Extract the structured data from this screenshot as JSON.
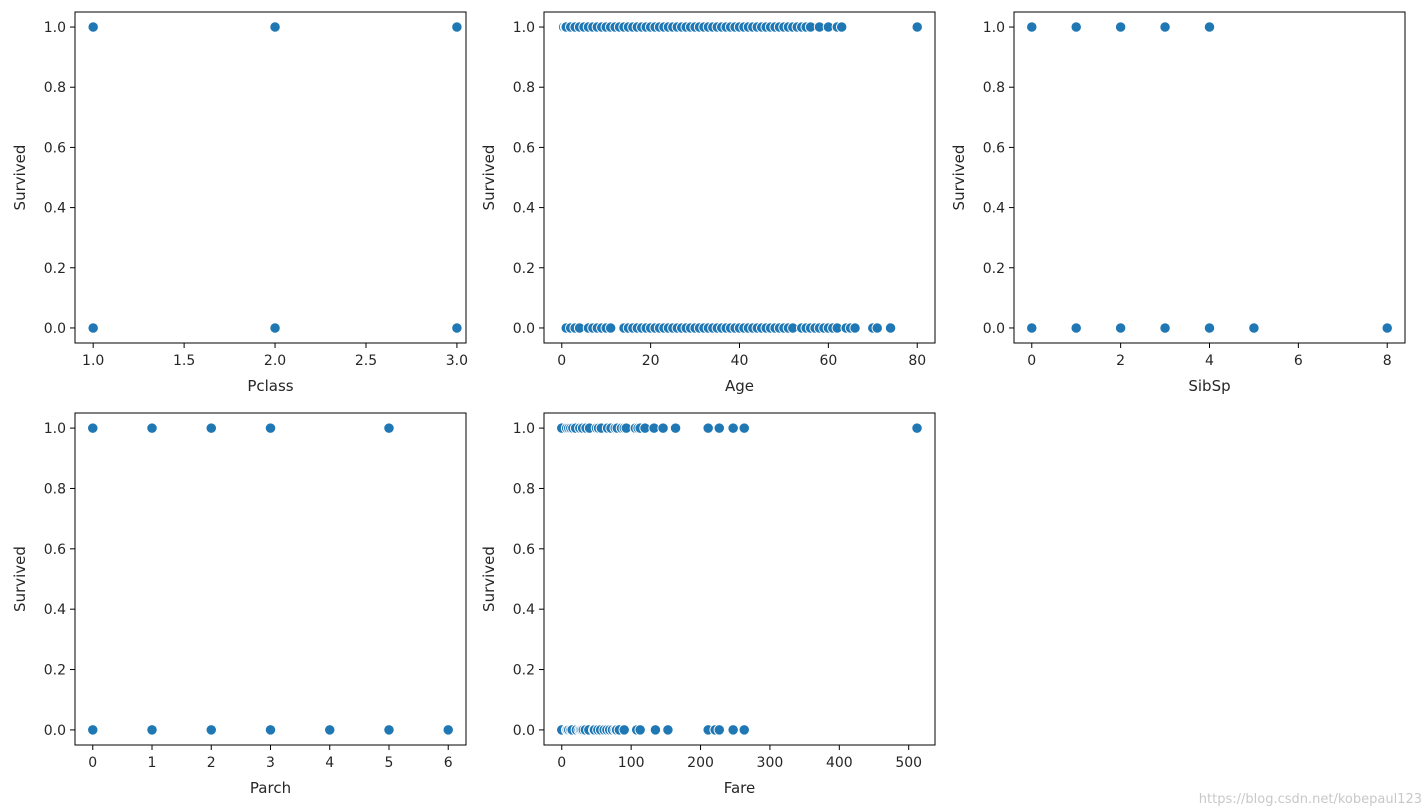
{
  "watermark": "https://blog.csdn.net/kobepaul123",
  "colors": {
    "marker": "#1f77b4",
    "marker_edge": "#ffffff",
    "axes": "#000000",
    "text": "#262626"
  },
  "chart_data": [
    {
      "type": "scatter",
      "xlabel": "Pclass",
      "ylabel": "Survived",
      "xlim": [
        0.9,
        3.05
      ],
      "ylim": [
        -0.05,
        1.05
      ],
      "xticks": [
        1.0,
        1.5,
        2.0,
        2.5,
        3.0
      ],
      "xtick_labels": [
        "1.0",
        "1.5",
        "2.0",
        "2.5",
        "3.0"
      ],
      "yticks": [
        0.0,
        0.2,
        0.4,
        0.6,
        0.8,
        1.0
      ],
      "ytick_labels": [
        "0.0",
        "0.2",
        "0.4",
        "0.6",
        "0.8",
        "1.0"
      ],
      "points": [
        [
          1,
          1
        ],
        [
          2,
          1
        ],
        [
          3,
          1
        ],
        [
          1,
          0
        ],
        [
          2,
          0
        ],
        [
          3,
          0
        ]
      ]
    },
    {
      "type": "scatter",
      "xlabel": "Age",
      "ylabel": "Survived",
      "xlim": [
        -4,
        84
      ],
      "ylim": [
        -0.05,
        1.05
      ],
      "xticks": [
        0,
        20,
        40,
        60,
        80
      ],
      "xtick_labels": [
        "0",
        "20",
        "40",
        "60",
        "80"
      ],
      "yticks": [
        0.0,
        0.2,
        0.4,
        0.6,
        0.8,
        1.0
      ],
      "ytick_labels": [
        "0.0",
        "0.2",
        "0.4",
        "0.6",
        "0.8",
        "1.0"
      ],
      "points": [
        [
          0.42,
          1
        ],
        [
          0.83,
          1
        ],
        [
          1,
          1
        ],
        [
          2,
          1
        ],
        [
          3,
          1
        ],
        [
          4,
          1
        ],
        [
          5,
          1
        ],
        [
          6,
          1
        ],
        [
          7,
          1
        ],
        [
          8,
          1
        ],
        [
          9,
          1
        ],
        [
          10,
          1
        ],
        [
          11,
          1
        ],
        [
          12,
          1
        ],
        [
          13,
          1
        ],
        [
          14,
          1
        ],
        [
          15,
          1
        ],
        [
          16,
          1
        ],
        [
          17,
          1
        ],
        [
          18,
          1
        ],
        [
          19,
          1
        ],
        [
          20,
          1
        ],
        [
          21,
          1
        ],
        [
          22,
          1
        ],
        [
          23,
          1
        ],
        [
          24,
          1
        ],
        [
          25,
          1
        ],
        [
          26,
          1
        ],
        [
          27,
          1
        ],
        [
          28,
          1
        ],
        [
          29,
          1
        ],
        [
          30,
          1
        ],
        [
          31,
          1
        ],
        [
          32,
          1
        ],
        [
          33,
          1
        ],
        [
          34,
          1
        ],
        [
          35,
          1
        ],
        [
          36,
          1
        ],
        [
          37,
          1
        ],
        [
          38,
          1
        ],
        [
          39,
          1
        ],
        [
          40,
          1
        ],
        [
          41,
          1
        ],
        [
          42,
          1
        ],
        [
          43,
          1
        ],
        [
          44,
          1
        ],
        [
          45,
          1
        ],
        [
          46,
          1
        ],
        [
          47,
          1
        ],
        [
          48,
          1
        ],
        [
          49,
          1
        ],
        [
          50,
          1
        ],
        [
          51,
          1
        ],
        [
          52,
          1
        ],
        [
          53,
          1
        ],
        [
          54,
          1
        ],
        [
          55,
          1
        ],
        [
          56,
          1
        ],
        [
          58,
          1
        ],
        [
          60,
          1
        ],
        [
          62,
          1
        ],
        [
          63,
          1
        ],
        [
          80,
          1
        ],
        [
          1,
          0
        ],
        [
          2,
          0
        ],
        [
          3,
          0
        ],
        [
          4,
          0
        ],
        [
          6,
          0
        ],
        [
          7,
          0
        ],
        [
          8,
          0
        ],
        [
          9,
          0
        ],
        [
          10,
          0
        ],
        [
          11,
          0
        ],
        [
          14,
          0
        ],
        [
          15,
          0
        ],
        [
          16,
          0
        ],
        [
          17,
          0
        ],
        [
          18,
          0
        ],
        [
          19,
          0
        ],
        [
          20,
          0
        ],
        [
          21,
          0
        ],
        [
          22,
          0
        ],
        [
          23,
          0
        ],
        [
          24,
          0
        ],
        [
          25,
          0
        ],
        [
          26,
          0
        ],
        [
          27,
          0
        ],
        [
          28,
          0
        ],
        [
          29,
          0
        ],
        [
          30,
          0
        ],
        [
          31,
          0
        ],
        [
          32,
          0
        ],
        [
          33,
          0
        ],
        [
          34,
          0
        ],
        [
          35,
          0
        ],
        [
          36,
          0
        ],
        [
          37,
          0
        ],
        [
          38,
          0
        ],
        [
          39,
          0
        ],
        [
          40,
          0
        ],
        [
          41,
          0
        ],
        [
          42,
          0
        ],
        [
          43,
          0
        ],
        [
          44,
          0
        ],
        [
          45,
          0
        ],
        [
          46,
          0
        ],
        [
          47,
          0
        ],
        [
          48,
          0
        ],
        [
          49,
          0
        ],
        [
          50,
          0
        ],
        [
          51,
          0
        ],
        [
          52,
          0
        ],
        [
          54,
          0
        ],
        [
          55,
          0
        ],
        [
          56,
          0
        ],
        [
          57,
          0
        ],
        [
          58,
          0
        ],
        [
          59,
          0
        ],
        [
          60,
          0
        ],
        [
          61,
          0
        ],
        [
          62,
          0
        ],
        [
          64,
          0
        ],
        [
          65,
          0
        ],
        [
          66,
          0
        ],
        [
          70,
          0
        ],
        [
          71,
          0
        ],
        [
          74,
          0
        ]
      ]
    },
    {
      "type": "scatter",
      "xlabel": "SibSp",
      "ylabel": "Survived",
      "xlim": [
        -0.4,
        8.4
      ],
      "ylim": [
        -0.05,
        1.05
      ],
      "xticks": [
        0,
        2,
        4,
        6,
        8
      ],
      "xtick_labels": [
        "0",
        "2",
        "4",
        "6",
        "8"
      ],
      "yticks": [
        0.0,
        0.2,
        0.4,
        0.6,
        0.8,
        1.0
      ],
      "ytick_labels": [
        "0.0",
        "0.2",
        "0.4",
        "0.6",
        "0.8",
        "1.0"
      ],
      "points": [
        [
          0,
          1
        ],
        [
          1,
          1
        ],
        [
          2,
          1
        ],
        [
          3,
          1
        ],
        [
          4,
          1
        ],
        [
          0,
          0
        ],
        [
          1,
          0
        ],
        [
          2,
          0
        ],
        [
          3,
          0
        ],
        [
          4,
          0
        ],
        [
          5,
          0
        ],
        [
          8,
          0
        ]
      ]
    },
    {
      "type": "scatter",
      "xlabel": "Parch",
      "ylabel": "Survived",
      "xlim": [
        -0.3,
        6.3
      ],
      "ylim": [
        -0.05,
        1.05
      ],
      "xticks": [
        0,
        1,
        2,
        3,
        4,
        5,
        6
      ],
      "xtick_labels": [
        "0",
        "1",
        "2",
        "3",
        "4",
        "5",
        "6"
      ],
      "yticks": [
        0.0,
        0.2,
        0.4,
        0.6,
        0.8,
        1.0
      ],
      "ytick_labels": [
        "0.0",
        "0.2",
        "0.4",
        "0.6",
        "0.8",
        "1.0"
      ],
      "points": [
        [
          0,
          1
        ],
        [
          1,
          1
        ],
        [
          2,
          1
        ],
        [
          3,
          1
        ],
        [
          5,
          1
        ],
        [
          0,
          0
        ],
        [
          1,
          0
        ],
        [
          2,
          0
        ],
        [
          3,
          0
        ],
        [
          4,
          0
        ],
        [
          5,
          0
        ],
        [
          6,
          0
        ]
      ]
    },
    {
      "type": "scatter",
      "xlabel": "Fare",
      "ylabel": "Survived",
      "xlim": [
        -25.6,
        537.9
      ],
      "ylim": [
        -0.05,
        1.05
      ],
      "xticks": [
        0,
        100,
        200,
        300,
        400,
        500
      ],
      "xtick_labels": [
        "0",
        "100",
        "200",
        "300",
        "400",
        "500"
      ],
      "yticks": [
        0.0,
        0.2,
        0.4,
        0.6,
        0.8,
        1.0
      ],
      "ytick_labels": [
        "0.0",
        "0.2",
        "0.4",
        "0.6",
        "0.8",
        "1.0"
      ],
      "points": [
        [
          0,
          1
        ],
        [
          7,
          1
        ],
        [
          10,
          1
        ],
        [
          13,
          1
        ],
        [
          16,
          1
        ],
        [
          20,
          1
        ],
        [
          26,
          1
        ],
        [
          30,
          1
        ],
        [
          35,
          1
        ],
        [
          40,
          1
        ],
        [
          50,
          1
        ],
        [
          53,
          1
        ],
        [
          57,
          1
        ],
        [
          66,
          1
        ],
        [
          71,
          1
        ],
        [
          77,
          1
        ],
        [
          80,
          1
        ],
        [
          86,
          1
        ],
        [
          90,
          1
        ],
        [
          93,
          1
        ],
        [
          106,
          1
        ],
        [
          110,
          1
        ],
        [
          113,
          1
        ],
        [
          120,
          1
        ],
        [
          133,
          1
        ],
        [
          146,
          1
        ],
        [
          164,
          1
        ],
        [
          211,
          1
        ],
        [
          227,
          1
        ],
        [
          247,
          1
        ],
        [
          263,
          1
        ],
        [
          512,
          1
        ],
        [
          0,
          0
        ],
        [
          7,
          0
        ],
        [
          8,
          0
        ],
        [
          10,
          0
        ],
        [
          13,
          0
        ],
        [
          15,
          0
        ],
        [
          21,
          0
        ],
        [
          25,
          0
        ],
        [
          27,
          0
        ],
        [
          29,
          0
        ],
        [
          31,
          0
        ],
        [
          34,
          0
        ],
        [
          39,
          0
        ],
        [
          46,
          0
        ],
        [
          47,
          0
        ],
        [
          52,
          0
        ],
        [
          56,
          0
        ],
        [
          61,
          0
        ],
        [
          65,
          0
        ],
        [
          69,
          0
        ],
        [
          73,
          0
        ],
        [
          77,
          0
        ],
        [
          79,
          0
        ],
        [
          83,
          0
        ],
        [
          90,
          0
        ],
        [
          108,
          0
        ],
        [
          113,
          0
        ],
        [
          135,
          0
        ],
        [
          153,
          0
        ],
        [
          211,
          0
        ],
        [
          221,
          0
        ],
        [
          227,
          0
        ],
        [
          247,
          0
        ],
        [
          263,
          0
        ]
      ]
    }
  ]
}
